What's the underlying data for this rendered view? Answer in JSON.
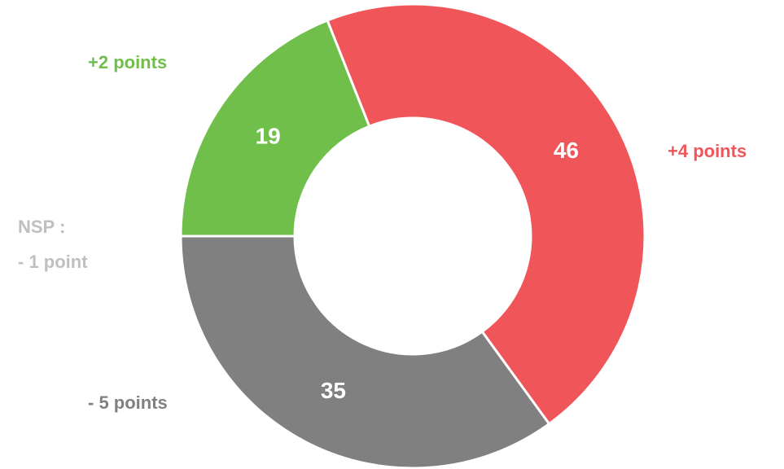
{
  "chart_data": {
    "type": "pie",
    "values": [
      46,
      35,
      19
    ],
    "colors": [
      "#f0555a",
      "#808080",
      "#70bf4b"
    ],
    "annotations": [
      {
        "lines": [
          "+4 points"
        ],
        "color": "#f0555a"
      },
      {
        "lines": [
          "- 5 points"
        ],
        "color": "#808080"
      },
      {
        "lines": [
          "+2 points"
        ],
        "color": "#70bf4b"
      },
      {
        "lines": [
          "NSP :",
          "- 1 point"
        ],
        "color": "#bfbfbf"
      }
    ]
  }
}
